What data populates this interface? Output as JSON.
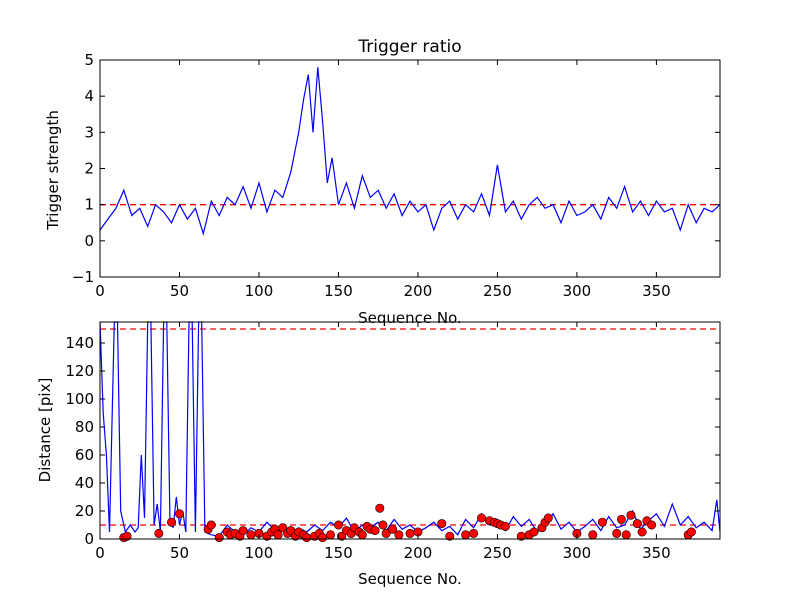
{
  "chart_data": [
    {
      "type": "line",
      "title": "Trigger ratio",
      "xlabel": "Sequence No.",
      "ylabel": "Trigger strength",
      "xlim": [
        0,
        390
      ],
      "ylim": [
        -1,
        5
      ],
      "xticks": [
        0,
        50,
        100,
        150,
        200,
        250,
        300,
        350
      ],
      "yticks": [
        -1,
        0,
        1,
        2,
        3,
        4,
        5
      ],
      "grid": false,
      "series": [
        {
          "color": "#0000ff",
          "x": [
            0,
            5,
            10,
            15,
            20,
            25,
            30,
            35,
            40,
            45,
            50,
            55,
            60,
            65,
            70,
            75,
            80,
            85,
            90,
            95,
            100,
            105,
            110,
            115,
            120,
            125,
            128,
            131,
            134,
            137,
            140,
            143,
            146,
            150,
            155,
            160,
            165,
            170,
            175,
            180,
            185,
            190,
            195,
            200,
            205,
            210,
            215,
            220,
            225,
            230,
            235,
            240,
            245,
            250,
            255,
            260,
            265,
            270,
            275,
            280,
            285,
            290,
            295,
            300,
            305,
            310,
            315,
            320,
            325,
            330,
            335,
            340,
            345,
            350,
            355,
            360,
            365,
            370,
            375,
            380,
            385,
            390
          ],
          "values": [
            0.3,
            0.6,
            0.9,
            1.4,
            0.7,
            0.9,
            0.4,
            1.0,
            0.8,
            0.5,
            1.0,
            0.6,
            0.9,
            0.2,
            1.1,
            0.7,
            1.2,
            1.0,
            1.5,
            0.9,
            1.6,
            0.8,
            1.4,
            1.2,
            1.9,
            3.0,
            3.9,
            4.6,
            3.0,
            4.8,
            3.3,
            1.6,
            2.3,
            1.0,
            1.6,
            0.9,
            1.8,
            1.2,
            1.4,
            0.9,
            1.3,
            0.7,
            1.1,
            0.8,
            1.0,
            0.3,
            0.9,
            1.1,
            0.6,
            1.0,
            0.8,
            1.3,
            0.7,
            2.1,
            0.8,
            1.1,
            0.6,
            1.0,
            1.2,
            0.9,
            1.0,
            0.5,
            1.1,
            0.7,
            0.8,
            1.0,
            0.6,
            1.2,
            0.9,
            1.5,
            0.8,
            1.1,
            0.7,
            1.1,
            0.8,
            0.9,
            0.3,
            1.0,
            0.5,
            0.9,
            0.8,
            1.0
          ]
        }
      ],
      "reference_lines": [
        {
          "axis": "y",
          "value": 1,
          "color": "#ff0000",
          "style": "dashed"
        }
      ]
    },
    {
      "type": "line",
      "title": "",
      "xlabel": "Sequence No.",
      "ylabel": "Distance [pix]",
      "xlim": [
        0,
        390
      ],
      "ylim": [
        0,
        155
      ],
      "xticks": [
        0,
        50,
        100,
        150,
        200,
        250,
        300,
        350
      ],
      "yticks": [
        0,
        20,
        40,
        60,
        80,
        100,
        120,
        140
      ],
      "grid": false,
      "series": [
        {
          "color": "#0000ff",
          "x": [
            0,
            2,
            4,
            6,
            9,
            11,
            13,
            16,
            19,
            22,
            24,
            26,
            28,
            30,
            32,
            34,
            36,
            38,
            40,
            42,
            44,
            46,
            48,
            50,
            52,
            54,
            56,
            58,
            60,
            62,
            64,
            66,
            70,
            75,
            80,
            85,
            90,
            95,
            100,
            105,
            110,
            115,
            120,
            125,
            130,
            135,
            140,
            145,
            150,
            155,
            160,
            165,
            170,
            175,
            180,
            185,
            190,
            195,
            200,
            205,
            210,
            215,
            220,
            225,
            230,
            235,
            240,
            245,
            250,
            255,
            260,
            265,
            270,
            275,
            280,
            285,
            290,
            295,
            300,
            305,
            310,
            315,
            320,
            325,
            330,
            335,
            340,
            345,
            350,
            355,
            360,
            365,
            370,
            375,
            380,
            385,
            388,
            390
          ],
          "values": [
            155,
            90,
            60,
            5,
            155,
            155,
            20,
            5,
            10,
            5,
            8,
            60,
            15,
            155,
            155,
            10,
            25,
            5,
            155,
            155,
            15,
            8,
            30,
            10,
            20,
            5,
            155,
            155,
            5,
            155,
            155,
            5,
            3,
            2,
            10,
            5,
            3,
            8,
            5,
            12,
            6,
            10,
            3,
            8,
            5,
            10,
            6,
            12,
            8,
            15,
            5,
            10,
            8,
            12,
            6,
            14,
            7,
            10,
            5,
            8,
            12,
            6,
            9,
            3,
            14,
            8,
            18,
            10,
            12,
            6,
            16,
            9,
            14,
            5,
            10,
            18,
            7,
            12,
            5,
            9,
            14,
            6,
            16,
            8,
            10,
            20,
            7,
            13,
            18,
            9,
            25,
            10,
            16,
            8,
            12,
            6,
            28,
            5
          ]
        },
        {
          "kind": "markers",
          "color": "#ff0000",
          "x": [
            15,
            17,
            37,
            45,
            50,
            68,
            70,
            75,
            80,
            82,
            85,
            88,
            90,
            95,
            100,
            105,
            108,
            110,
            112,
            115,
            118,
            120,
            123,
            125,
            128,
            130,
            135,
            138,
            140,
            145,
            150,
            152,
            155,
            158,
            160,
            163,
            165,
            168,
            170,
            173,
            176,
            178,
            180,
            184,
            188,
            195,
            200,
            215,
            220,
            230,
            235,
            240,
            245,
            248,
            250,
            252,
            255,
            265,
            270,
            273,
            278,
            280,
            282,
            300,
            310,
            316,
            325,
            328,
            331,
            334,
            338,
            341,
            344,
            347,
            370,
            372
          ],
          "values": [
            1,
            2,
            4,
            12,
            18,
            7,
            10,
            1,
            5,
            3,
            4,
            2,
            6,
            3,
            4,
            2,
            5,
            7,
            3,
            8,
            4,
            6,
            2,
            5,
            3,
            1,
            2,
            4,
            1,
            3,
            10,
            2,
            6,
            4,
            8,
            5,
            3,
            9,
            7,
            6,
            22,
            10,
            4,
            7,
            3,
            4,
            5,
            11,
            2,
            3,
            4,
            15,
            13,
            12,
            11,
            10,
            9,
            2,
            3,
            5,
            8,
            12,
            15,
            4,
            3,
            12,
            4,
            14,
            3,
            17,
            11,
            5,
            13,
            10,
            3,
            5
          ]
        }
      ],
      "reference_lines": [
        {
          "axis": "y",
          "value": 150,
          "color": "#ff0000",
          "style": "dashed"
        },
        {
          "axis": "y",
          "value": 10,
          "color": "#ff0000",
          "style": "dashed"
        }
      ]
    }
  ]
}
